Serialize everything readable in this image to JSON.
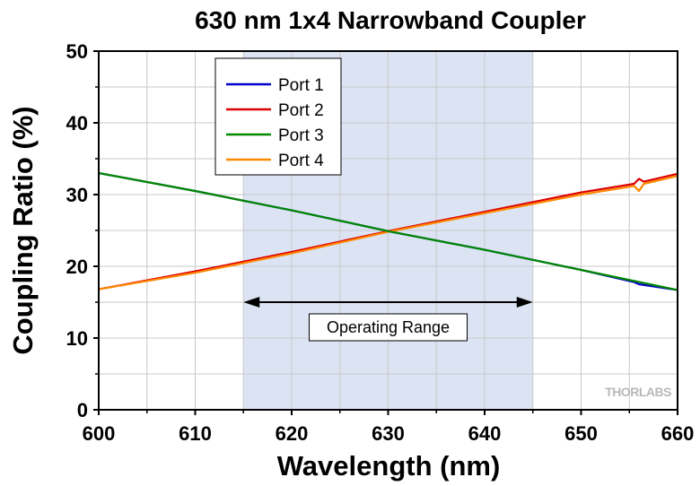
{
  "chart_data": {
    "type": "line",
    "title": "630 nm 1x4 Narrowband Coupler",
    "xlabel": "Wavelength (nm)",
    "ylabel": "Coupling Ratio (%)",
    "xlim": [
      600,
      660
    ],
    "ylim": [
      0,
      50
    ],
    "xticks": [
      600,
      610,
      620,
      630,
      640,
      650,
      660
    ],
    "yticks": [
      0,
      10,
      20,
      30,
      40,
      50
    ],
    "grid": true,
    "legend_position": "top-left",
    "series": [
      {
        "name": "Port 1",
        "color": "#0000cc",
        "x": [
          600,
          610,
          620,
          630,
          640,
          650,
          655.5,
          656,
          660
        ],
        "y": [
          33.0,
          30.5,
          27.8,
          24.9,
          22.3,
          19.5,
          17.8,
          17.5,
          16.7
        ]
      },
      {
        "name": "Port 2",
        "color": "#dd0000",
        "x": [
          600,
          610,
          620,
          630,
          640,
          650,
          655.5,
          656,
          656.5,
          660
        ],
        "y": [
          16.8,
          19.3,
          22.0,
          24.9,
          27.6,
          30.3,
          31.5,
          32.2,
          31.8,
          32.9
        ]
      },
      {
        "name": "Port 3",
        "color": "#008800",
        "x": [
          600,
          610,
          620,
          630,
          640,
          650,
          660
        ],
        "y": [
          33.0,
          30.5,
          27.8,
          24.9,
          22.3,
          19.5,
          16.7
        ]
      },
      {
        "name": "Port 4",
        "color": "#ff8800",
        "x": [
          600,
          610,
          620,
          630,
          640,
          650,
          655.5,
          656,
          656.5,
          660
        ],
        "y": [
          16.8,
          19.1,
          21.8,
          24.8,
          27.4,
          30.0,
          31.2,
          30.5,
          31.5,
          32.6
        ]
      }
    ],
    "operating_range": {
      "start": 615,
      "end": 645,
      "label": "Operating Range",
      "arrow_y": 15,
      "shade_color": "#dce4f4"
    },
    "watermark": "THORLABS"
  }
}
